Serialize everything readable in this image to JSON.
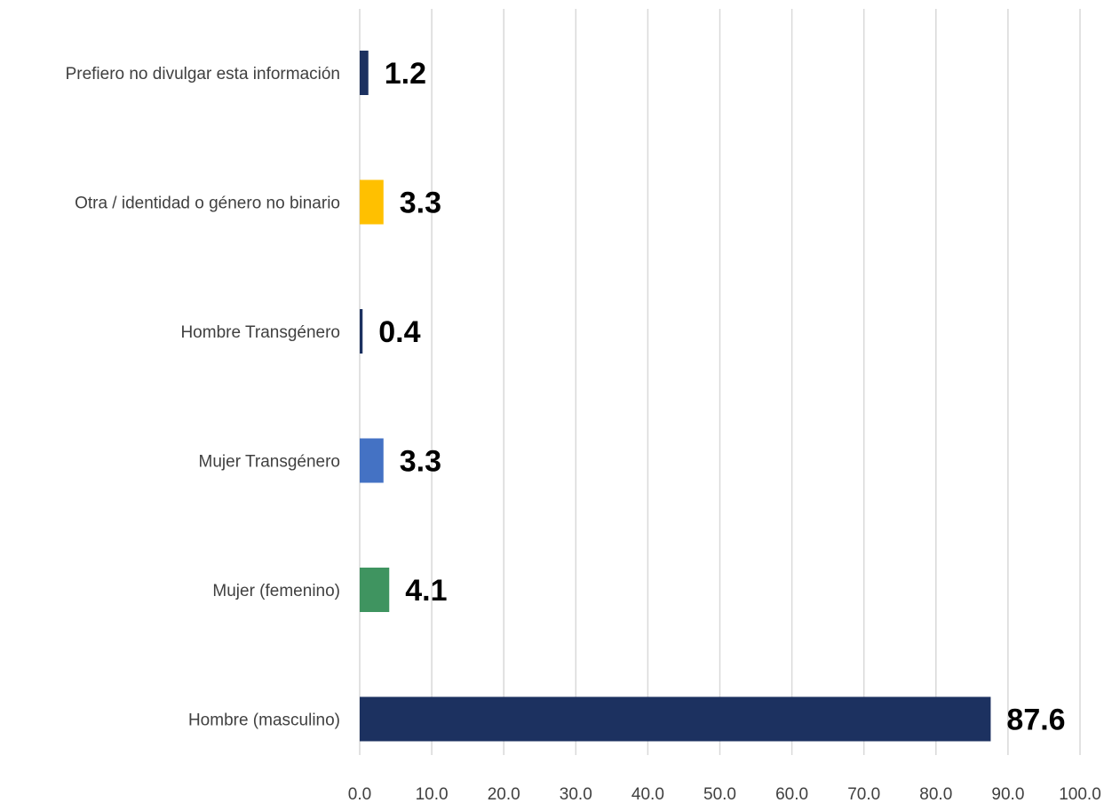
{
  "chart_data": {
    "type": "bar",
    "orientation": "horizontal",
    "title": "",
    "xlabel": "",
    "ylabel": "",
    "xlim": [
      0,
      100
    ],
    "x_ticks": [
      0,
      10,
      20,
      30,
      40,
      50,
      60,
      70,
      80,
      90,
      100
    ],
    "x_tick_labels": [
      "0.0",
      "10.0",
      "20.0",
      "30.0",
      "40.0",
      "50.0",
      "60.0",
      "70.0",
      "80.0",
      "90.0",
      "100.0"
    ],
    "grid": "vertical",
    "legend": "none",
    "categories": [
      "Prefiero no divulgar esta información",
      "Otra / identidad o género no binario",
      "Hombre Transgénero",
      "Mujer Transgénero",
      "Mujer (femenino)",
      "Hombre (masculino)"
    ],
    "values": [
      1.2,
      3.3,
      0.4,
      3.3,
      4.1,
      87.6
    ],
    "value_labels": [
      "1.2",
      "3.3",
      "0.4",
      "3.3",
      "4.1",
      "87.6"
    ],
    "colors": [
      "#1c3160",
      "#ffc000",
      "#1c3160",
      "#4472c4",
      "#3f9460",
      "#1c3160"
    ]
  }
}
